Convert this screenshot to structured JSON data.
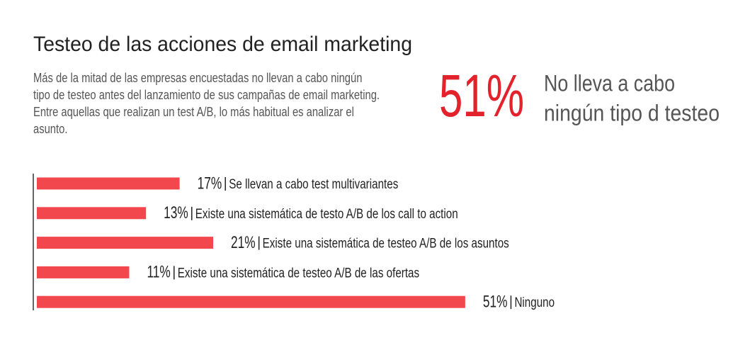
{
  "chart_data": {
    "type": "hbar",
    "title": "Testeo de las acciones de email marketing",
    "subtitle": "Más de la mitad de las empresas encuestadas no llevan a cabo ningún tipo de testeo antes del lanzamiento de sus campañas de email marketing. Entre aquellas que realizan un test A/B, lo más habitual es analizar el asunto.",
    "highlight": {
      "value": 51,
      "label": "51%",
      "lines": [
        "No lleva a cabo",
        "ningún tipo d testeo"
      ],
      "color": "#e3222b"
    },
    "categories": [
      "Se llevan a cabo test multivariantes",
      "Existe una sistemática de testo A/B de los call to action",
      "Existe una sistemática de testeo A/B de los asuntos",
      "Existe una sistemática de testeo A/B de las ofertas",
      "Ninguno"
    ],
    "values": [
      17,
      13,
      21,
      11,
      51
    ],
    "value_labels": [
      "17%",
      "13%",
      "21%",
      "11%",
      "51%"
    ],
    "color": "#f2474c"
  }
}
